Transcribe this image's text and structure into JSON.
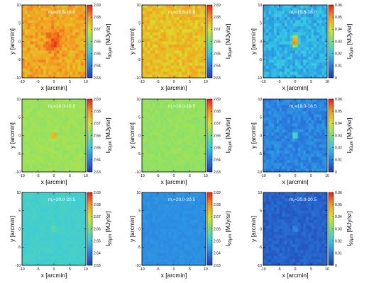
{
  "chart_data": {
    "type": "heatmap",
    "x_label": "x [arcmin]",
    "y_label": "y [arcmin]",
    "x_ticks": [
      "-10",
      "-5",
      "0",
      "5",
      "10"
    ],
    "y_ticks": [
      "-10",
      "-5",
      "0",
      "5",
      "10"
    ],
    "xlim": [
      -10,
      10
    ],
    "ylim": [
      -10,
      10
    ],
    "colorscale": [
      "#1f3aa8",
      "#2a7de0",
      "#34c8e6",
      "#76e07a",
      "#d8e22a",
      "#f59a22",
      "#e81e1a"
    ],
    "colorbar_label_main": "I",
    "colorbar_label_sub": "90μm",
    "colorbar_label_unit": " [MJy/sr]",
    "scales": {
      "a": {
        "range": [
          2.63,
          2.69
        ],
        "ticks": [
          "2.69",
          "2.68",
          "2.67",
          "2.66",
          "2.65",
          "2.64",
          "2.63"
        ]
      },
      "b": {
        "range": [
          0,
          0.06
        ],
        "ticks": [
          "0.06",
          "0.05",
          "0.04",
          "0.03",
          "0.02",
          "0.01",
          "0"
        ]
      }
    },
    "panels": [
      {
        "row": 0,
        "col": 0,
        "label": "mr=15.5-16.0",
        "label_main": "m",
        "label_sub": "r",
        "label_rest": "=15.5-16.0",
        "scale": "a",
        "background": 2.678,
        "noise": 0.004,
        "peak": 0.007,
        "peak_size": 2.2
      },
      {
        "row": 0,
        "col": 1,
        "label": "mr=15.5-16.0",
        "label_main": "m",
        "label_sub": "r",
        "label_rest": "=15.5-16.0",
        "scale": "a",
        "background": 2.675,
        "noise": 0.004,
        "peak": 0,
        "peak_size": 1
      },
      {
        "row": 0,
        "col": 2,
        "label": "mr=15.5-16.0",
        "label_main": "m",
        "label_sub": "r",
        "label_rest": "=15.5-16.0",
        "scale": "b",
        "background": 0.017,
        "noise": 0.004,
        "peak": 0.045,
        "peak_size": 0.9
      },
      {
        "row": 1,
        "col": 0,
        "label": "mr=18.0-18.5",
        "label_main": "m",
        "label_sub": "r",
        "label_rest": "=18.0-18.5",
        "scale": "a",
        "background": 2.664,
        "noise": 0.0015,
        "peak": 0.028,
        "peak_size": 0.55
      },
      {
        "row": 1,
        "col": 1,
        "label": "mr=18.0-18.5",
        "label_main": "m",
        "label_sub": "r",
        "label_rest": "=18.0-18.5",
        "scale": "a",
        "background": 2.663,
        "noise": 0.0015,
        "peak": 0,
        "peak_size": 1
      },
      {
        "row": 1,
        "col": 2,
        "label": "mr=18.0-18.5",
        "label_main": "m",
        "label_sub": "r",
        "label_rest": "=18.0-18.5",
        "scale": "b",
        "background": 0.011,
        "noise": 0.003,
        "peak": 0.03,
        "peak_size": 0.55
      },
      {
        "row": 2,
        "col": 0,
        "label": "mr=20.0-20.5",
        "label_main": "m",
        "label_sub": "r",
        "label_rest": "=20.0-20.5",
        "scale": "a",
        "background": 2.6525,
        "noise": 0.001,
        "peak": 0.007,
        "peak_size": 0.6
      },
      {
        "row": 2,
        "col": 1,
        "label": "mr=20.0-20.5",
        "label_main": "m",
        "label_sub": "r",
        "label_rest": "=20.0-20.5",
        "scale": "a",
        "background": 2.6425,
        "noise": 0.001,
        "peak": 0,
        "peak_size": 1
      },
      {
        "row": 2,
        "col": 2,
        "label": "mr=20.0-20.5",
        "label_main": "m",
        "label_sub": "r",
        "label_rest": "=20.0-20.5",
        "scale": "b",
        "background": 0.006,
        "noise": 0.002,
        "peak": 0.009,
        "peak_size": 0.6
      }
    ]
  }
}
